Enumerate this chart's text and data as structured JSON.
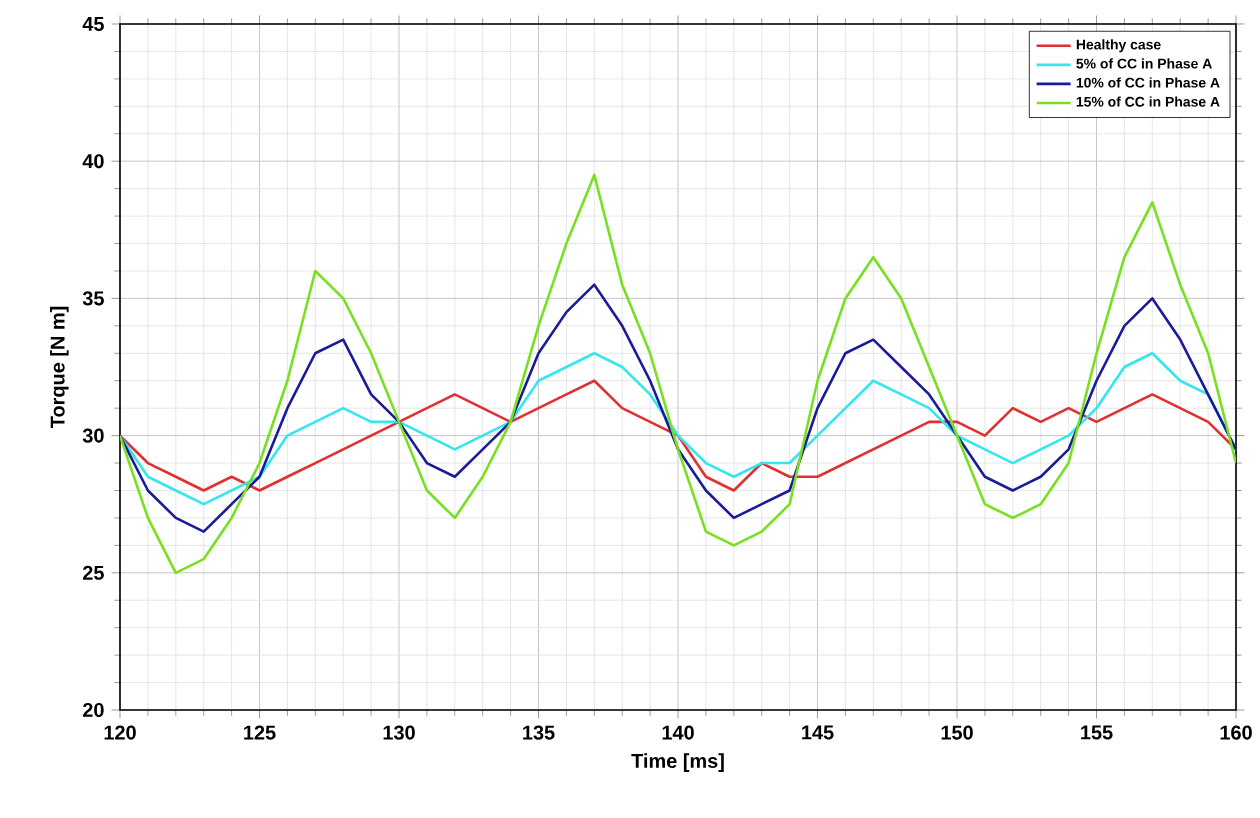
{
  "chart_data": {
    "type": "line",
    "xlabel": "Time [ms]",
    "ylabel": "Torque [N m]",
    "xlim": [
      120,
      160
    ],
    "ylim": [
      20,
      45
    ],
    "xticks": [
      120,
      125,
      130,
      135,
      140,
      145,
      150,
      155,
      160
    ],
    "yticks": [
      20,
      25,
      30,
      35,
      40,
      45
    ],
    "grid": true,
    "legend": "top right",
    "line_style": "solid",
    "marker": "none",
    "x": [
      120,
      121,
      122,
      123,
      124,
      125,
      126,
      127,
      128,
      129,
      130,
      131,
      132,
      133,
      134,
      135,
      136,
      137,
      138,
      139,
      140,
      141,
      142,
      143,
      144,
      145,
      146,
      147,
      148,
      149,
      150,
      151,
      152,
      153,
      154,
      155,
      156,
      157,
      158,
      159,
      160
    ],
    "series": [
      {
        "name": "Healthy case",
        "color": "#e03030",
        "values": [
          30,
          29,
          28.5,
          28,
          28.5,
          28,
          28.5,
          29,
          29.5,
          30,
          30.5,
          31,
          31.5,
          31,
          30.5,
          31,
          31.5,
          32,
          31,
          30.5,
          30,
          28.5,
          28,
          29,
          28.5,
          28.5,
          29,
          29.5,
          30,
          30.5,
          30.5,
          30,
          31,
          30.5,
          31,
          30.5,
          31,
          31.5,
          31,
          30.5,
          29.5
        ]
      },
      {
        "name": "5% of CC in Phase A",
        "color": "#33e6f0",
        "values": [
          30,
          28.5,
          28,
          27.5,
          28,
          28.5,
          30,
          30.5,
          31,
          30.5,
          30.5,
          30,
          29.5,
          30,
          30.5,
          32,
          32.5,
          33,
          32.5,
          31.5,
          30,
          29,
          28.5,
          29,
          29,
          30,
          31,
          32,
          31.5,
          31,
          30,
          29.5,
          29,
          29.5,
          30,
          31,
          32.5,
          33,
          32,
          31.5,
          29.5
        ]
      },
      {
        "name": "10% of CC in Phase A",
        "color": "#1a1a9a",
        "values": [
          30,
          28,
          27,
          26.5,
          27.5,
          28.5,
          31,
          33,
          33.5,
          31.5,
          30.5,
          29,
          28.5,
          29.5,
          30.5,
          33,
          34.5,
          35.5,
          34,
          32,
          29.5,
          28,
          27,
          27.5,
          28,
          31,
          33,
          33.5,
          32.5,
          31.5,
          30,
          28.5,
          28,
          28.5,
          29.5,
          32,
          34,
          35,
          33.5,
          31.5,
          29.5
        ]
      },
      {
        "name": "15% of CC in Phase A",
        "color": "#77e020",
        "values": [
          30,
          27,
          25,
          25.5,
          27,
          29,
          32,
          36,
          35,
          33,
          30.5,
          28,
          27,
          28.5,
          30.5,
          34,
          37,
          39.5,
          35.5,
          33,
          29.5,
          26.5,
          26,
          26.5,
          27.5,
          32,
          35,
          36.5,
          35,
          32.5,
          30,
          27.5,
          27,
          27.5,
          29,
          33,
          36.5,
          38.5,
          35.5,
          33,
          29
        ]
      }
    ]
  }
}
